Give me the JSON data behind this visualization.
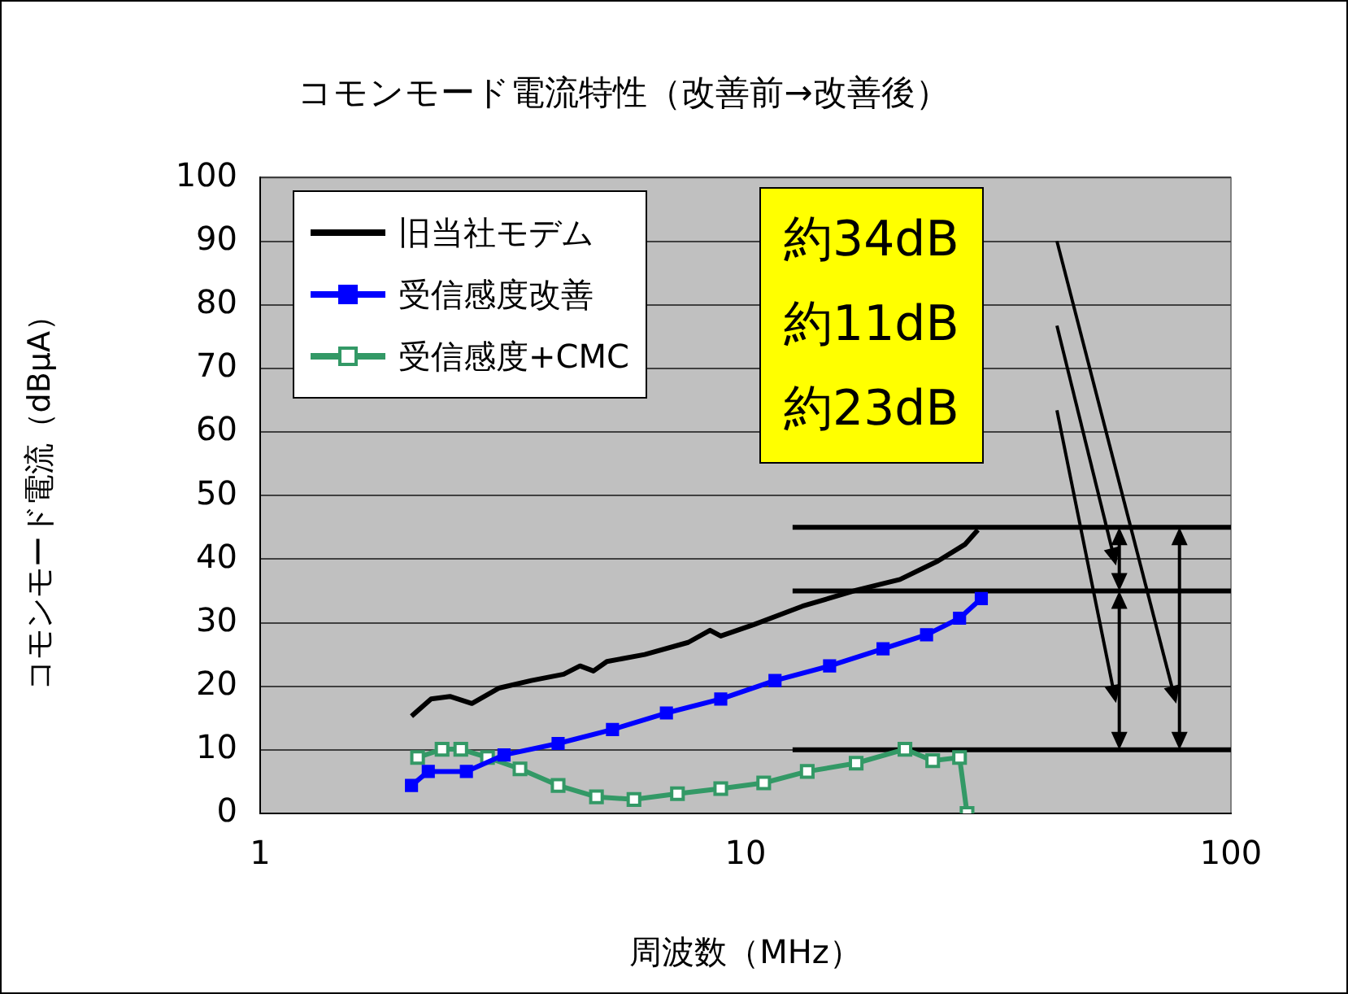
{
  "chart_data": {
    "type": "line",
    "title": "コモンモード電流特性（改善前→改善後）",
    "xlabel": "周波数（MHz）",
    "ylabel": "コモンモード電流（dBμA）",
    "log": "x",
    "xlim": [
      1,
      100
    ],
    "xticks": [
      1,
      10,
      100
    ],
    "ylim": [
      0,
      100
    ],
    "yticks": [
      0,
      10,
      20,
      30,
      40,
      50,
      60,
      70,
      80,
      90,
      100
    ],
    "grid": "y",
    "legend": "top left",
    "series": [
      {
        "name": "旧当社モデム",
        "color": "#000000",
        "marker": "none",
        "x": [
          2.05,
          2.25,
          2.46,
          2.73,
          3.1,
          3.62,
          4.22,
          4.56,
          4.86,
          5.18,
          6.2,
          7.62,
          8.45,
          8.89,
          10.4,
          13.1,
          16.9,
          20.8,
          24.9,
          28.3,
          30.1
        ],
        "values": [
          15.3,
          18,
          18.4,
          17.3,
          19.7,
          20.9,
          21.9,
          23.2,
          22.4,
          23.9,
          25,
          26.9,
          28.8,
          27.9,
          29.7,
          32.6,
          35.1,
          36.8,
          39.7,
          42.3,
          44.6
        ]
      },
      {
        "name": "受信感度改善",
        "color": "#0000ff",
        "marker": "square",
        "x": [
          2.05,
          2.22,
          2.66,
          3.18,
          4.11,
          5.32,
          6.87,
          8.89,
          11.5,
          14.9,
          19.2,
          23.6,
          27.6,
          30.6
        ],
        "values": [
          4.4,
          6.6,
          6.6,
          9.2,
          11,
          13.2,
          15.8,
          18,
          20.9,
          23.2,
          25.9,
          28.1,
          30.7,
          33.8
        ]
      },
      {
        "name": "受信感度+CMC",
        "color": "#339966",
        "marker": "square_open",
        "x": [
          2.11,
          2.37,
          2.59,
          2.94,
          3.43,
          4.11,
          4.93,
          5.89,
          7.24,
          8.89,
          10.9,
          13.4,
          16.9,
          21.3,
          24.3,
          27.6,
          28.6
        ],
        "values": [
          8.8,
          10.1,
          10.1,
          8.8,
          7,
          4.4,
          2.6,
          2.2,
          3.1,
          3.9,
          4.8,
          6.6,
          7.9,
          10.1,
          8.3,
          8.8,
          0
        ]
      },
      {
        "color": "#000000",
        "marker": "none",
        "x": [
          12.5,
          100
        ],
        "values": [
          45,
          45
        ]
      },
      {
        "color": "#000000",
        "marker": "none",
        "x": [
          12.5,
          100
        ],
        "values": [
          35,
          35
        ]
      },
      {
        "color": "#000000",
        "marker": "none",
        "x": [
          12.5,
          100
        ],
        "values": [
          10,
          10
        ]
      }
    ],
    "annotations": [
      "約34dB",
      "約11dB",
      "約23dB"
    ]
  }
}
